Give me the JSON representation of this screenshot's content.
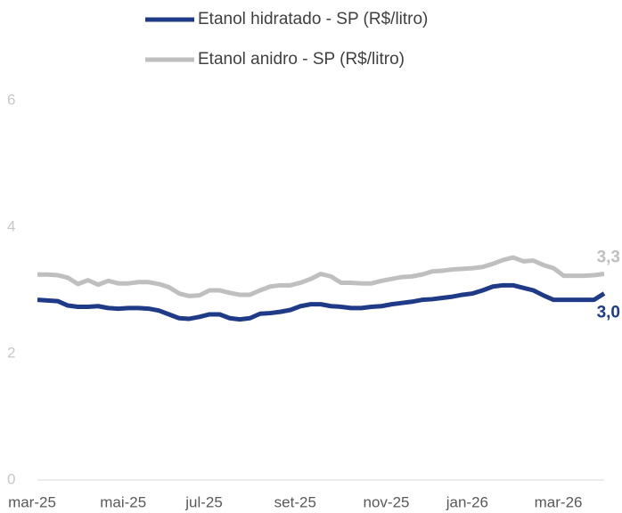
{
  "chart_data": {
    "type": "line",
    "categories": [
      "mar-25",
      null,
      null,
      null,
      null,
      null,
      null,
      null,
      null,
      "mai-25",
      null,
      null,
      null,
      null,
      null,
      null,
      null,
      "jul-25",
      null,
      null,
      null,
      null,
      null,
      null,
      null,
      null,
      "set-25",
      null,
      null,
      null,
      null,
      null,
      null,
      null,
      null,
      "nov-25",
      null,
      null,
      null,
      null,
      null,
      null,
      null,
      "jan-26",
      null,
      null,
      null,
      null,
      null,
      null,
      null,
      null,
      "mar-26",
      null,
      null,
      null,
      null
    ],
    "series": [
      {
        "name": "Etanol hidratado - SP (R$/litro)",
        "color": "#1f3a87",
        "values": [
          2.85,
          2.84,
          2.83,
          2.76,
          2.74,
          2.74,
          2.75,
          2.72,
          2.71,
          2.72,
          2.72,
          2.71,
          2.68,
          2.62,
          2.56,
          2.55,
          2.58,
          2.62,
          2.62,
          2.56,
          2.54,
          2.56,
          2.63,
          2.64,
          2.66,
          2.69,
          2.75,
          2.78,
          2.78,
          2.75,
          2.74,
          2.72,
          2.72,
          2.74,
          2.75,
          2.78,
          2.8,
          2.82,
          2.85,
          2.86,
          2.88,
          2.9,
          2.93,
          2.95,
          3.0,
          3.06,
          3.08,
          3.08,
          3.04,
          3.0,
          2.92,
          2.85,
          2.85,
          2.85,
          2.85,
          2.85,
          2.95
        ],
        "value_labels": [
          null,
          null,
          null,
          null,
          null,
          null,
          null,
          null,
          null,
          null,
          null,
          null,
          null,
          null,
          null,
          null,
          null,
          null,
          null,
          null,
          null,
          null,
          null,
          null,
          null,
          null,
          null,
          null,
          null,
          null,
          null,
          null,
          null,
          null,
          null,
          null,
          null,
          null,
          null,
          null,
          null,
          null,
          null,
          null,
          null,
          null,
          null,
          null,
          null,
          null,
          null,
          null,
          null,
          null,
          null,
          null,
          "3,0"
        ]
      },
      {
        "name": "Etanol anidro - SP (R$/litro)",
        "color": "#bfbfbf",
        "values": [
          3.25,
          3.25,
          3.24,
          3.2,
          3.1,
          3.16,
          3.09,
          3.15,
          3.11,
          3.11,
          3.13,
          3.13,
          3.1,
          3.05,
          2.95,
          2.91,
          2.92,
          3.0,
          3.0,
          2.96,
          2.93,
          2.93,
          3.0,
          3.06,
          3.08,
          3.08,
          3.12,
          3.18,
          3.26,
          3.22,
          3.12,
          3.12,
          3.11,
          3.11,
          3.15,
          3.18,
          3.21,
          3.22,
          3.25,
          3.3,
          3.31,
          3.33,
          3.34,
          3.35,
          3.37,
          3.42,
          3.48,
          3.52,
          3.46,
          3.47,
          3.4,
          3.35,
          3.23,
          3.23,
          3.23,
          3.24,
          3.26
        ],
        "value_labels": [
          null,
          null,
          null,
          null,
          null,
          null,
          null,
          null,
          null,
          null,
          null,
          null,
          null,
          null,
          null,
          null,
          null,
          null,
          null,
          null,
          null,
          null,
          null,
          null,
          null,
          null,
          null,
          null,
          null,
          null,
          null,
          null,
          null,
          null,
          null,
          null,
          null,
          null,
          null,
          null,
          null,
          null,
          null,
          null,
          null,
          null,
          null,
          null,
          null,
          null,
          null,
          null,
          null,
          null,
          null,
          null,
          "3,3"
        ]
      }
    ],
    "ylim": [
      0,
      6
    ],
    "yticks": [
      0,
      2,
      4,
      6
    ]
  }
}
